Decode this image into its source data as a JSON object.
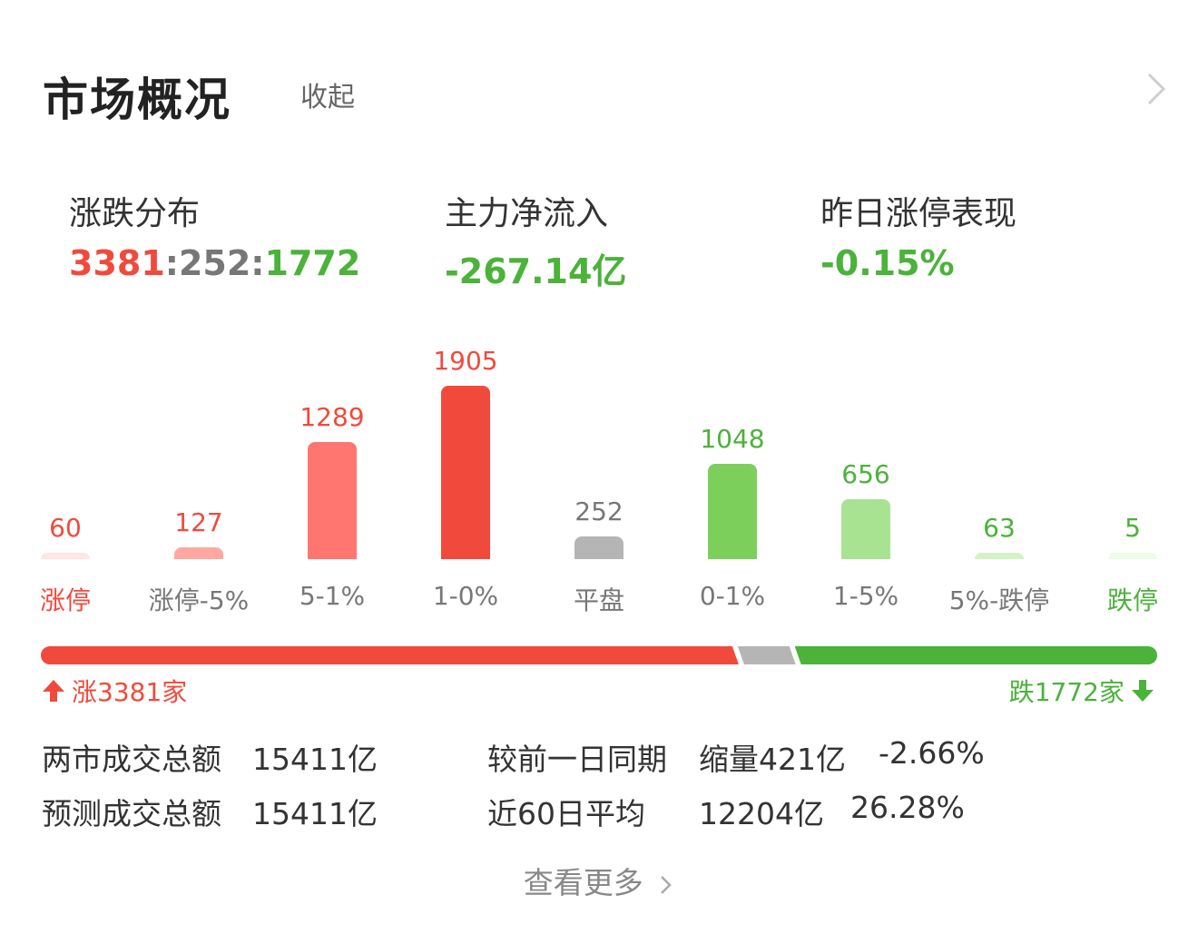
{
  "header": {
    "title": "市场概况",
    "collapse_label": "收起"
  },
  "stats": {
    "dist_label": "涨跌分布",
    "dist_up": "3381",
    "dist_sep1": ":",
    "dist_flat": "252",
    "dist_sep2": ":",
    "dist_down": "1772",
    "flow_label": "主力净流入",
    "flow_value": "-267.14亿",
    "limit_label": "昨日涨停表现",
    "limit_value": "-0.15%"
  },
  "colors": {
    "up": "#f14a3c",
    "down": "#4bb23a",
    "flat": "#b5b5b5"
  },
  "chart_data": {
    "type": "bar",
    "categories": [
      "涨停",
      "涨停-5%",
      "5-1%",
      "1-0%",
      "平盘",
      "0-1%",
      "1-5%",
      "5%-跌停",
      "跌停"
    ],
    "values": [
      60,
      127,
      1289,
      1905,
      252,
      1048,
      656,
      63,
      5
    ],
    "value_labels": [
      "60",
      "127",
      "1289",
      "1905",
      "252",
      "1048",
      "656",
      "63",
      "5"
    ],
    "bar_colors": [
      "#ffe5e3",
      "#ffa8a1",
      "#ff7670",
      "#f14a3c",
      "#b5b5b5",
      "#7dcf5c",
      "#a8e391",
      "#d3f3c5",
      "#eefbe7"
    ],
    "label_colors": [
      "#f14a3c",
      "#f14a3c",
      "#f14a3c",
      "#f14a3c",
      "#777777",
      "#4bb23a",
      "#4bb23a",
      "#4bb23a",
      "#4bb23a"
    ],
    "category_colors": [
      "#f14a3c",
      "#777777",
      "#777777",
      "#777777",
      "#777777",
      "#777777",
      "#777777",
      "#777777",
      "#4bb23a"
    ]
  },
  "progress": {
    "up": 3381,
    "flat": 252,
    "down": 1772
  },
  "legend": {
    "up_text": "涨3381家",
    "down_text": "跌1772家"
  },
  "turnover": {
    "r1_label": "两市成交总额",
    "r1_value": "15411亿",
    "r1_cmp_label": "较前一日同期",
    "r1_cmp_change": "缩量421亿",
    "r1_cmp_pct": "-2.66%",
    "r2_label": "预测成交总额",
    "r2_value": "15411亿",
    "r2_cmp_label": "近60日平均",
    "r2_cmp_value": "12204亿",
    "r2_cmp_pct": "26.28%"
  },
  "footer": {
    "more_label": "查看更多"
  }
}
